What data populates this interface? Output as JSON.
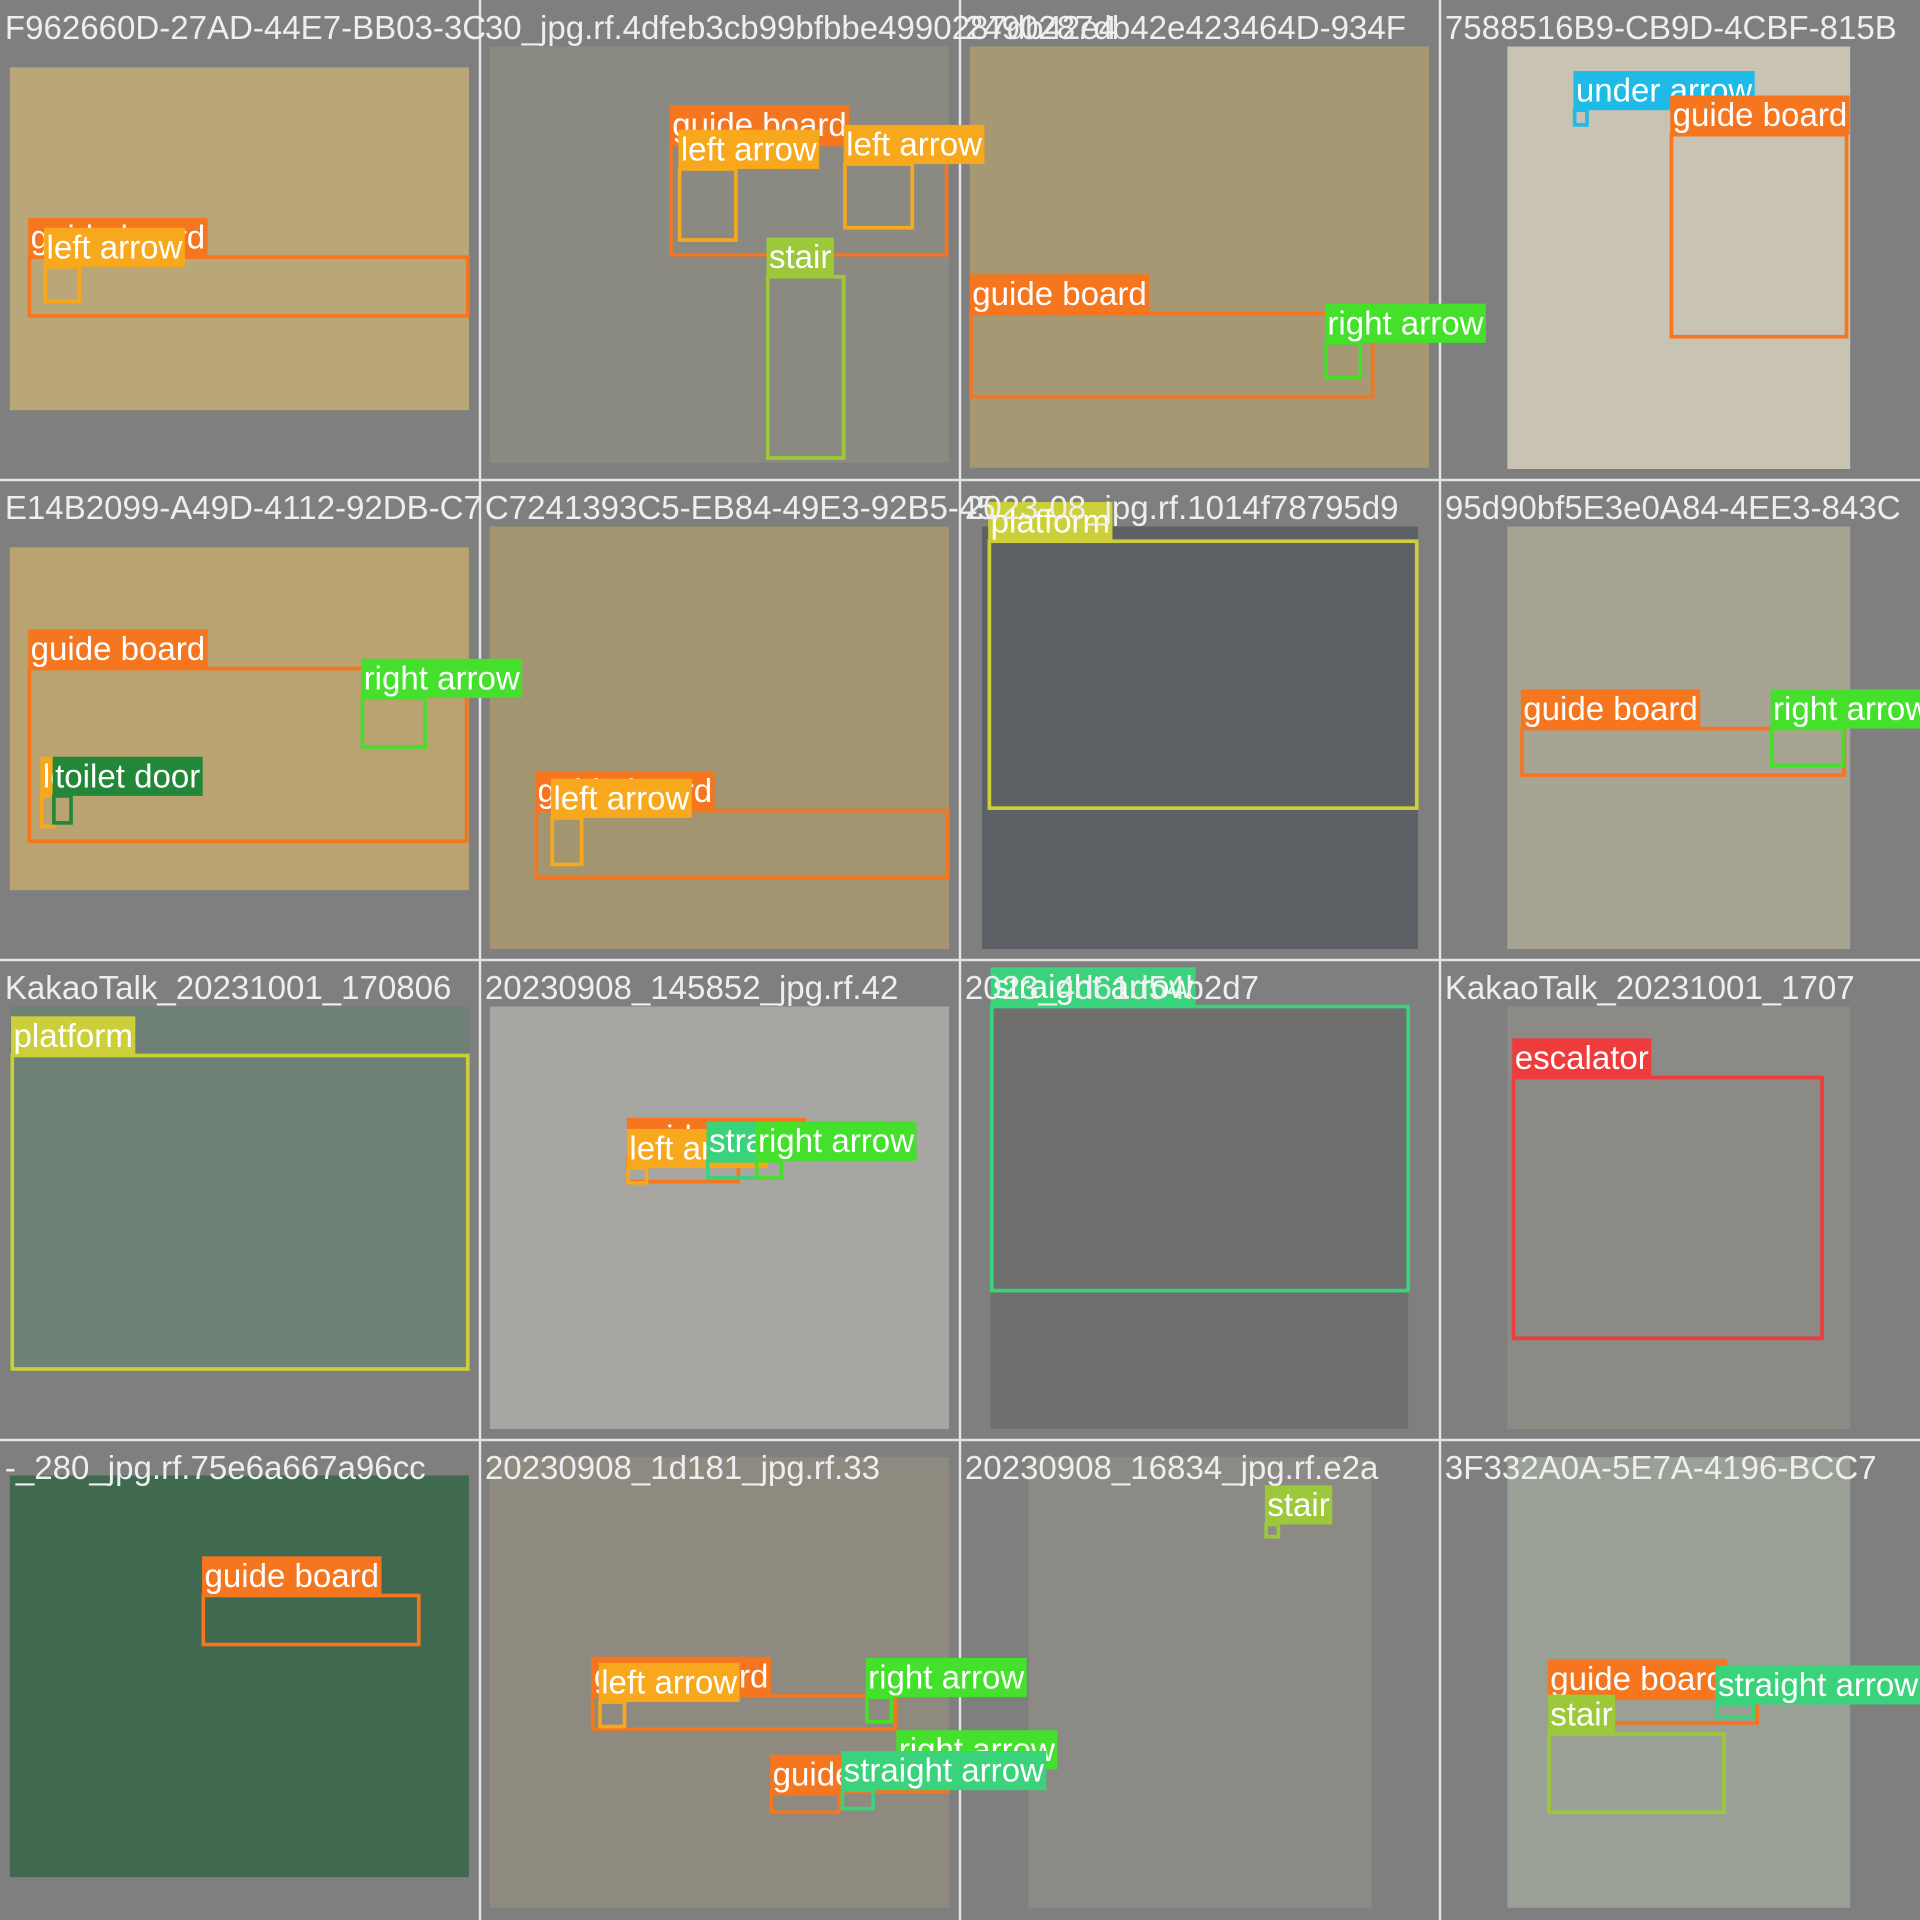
{
  "tiles": [
    {
      "filename": "F962660D-27AD-44E7-BB03-3C",
      "detections": [
        {
          "label": "guide board",
          "color": "#f5761f"
        },
        {
          "label": "left arrow",
          "color": "#f7a81c"
        }
      ]
    },
    {
      "filename": "30_jpg.rf.4dfeb3cb99bfbbe4990287db42e4",
      "detections": [
        {
          "label": "guide board",
          "color": "#f5761f"
        },
        {
          "label": "left arrow",
          "color": "#f7a81c"
        },
        {
          "label": "left arrow",
          "color": "#f7a81c"
        },
        {
          "label": "stair",
          "color": "#9cc83a"
        }
      ]
    },
    {
      "filename": "2490287db42e423464D-934F",
      "detections": [
        {
          "label": "guide board",
          "color": "#f5761f"
        },
        {
          "label": "right arrow",
          "color": "#45e02c"
        }
      ]
    },
    {
      "filename": "7588516B9-CB9D-4CBF-815B",
      "detections": [
        {
          "label": "under arrow",
          "color": "#1fbbe8"
        },
        {
          "label": "guide board",
          "color": "#f5761f"
        }
      ]
    },
    {
      "filename": "E14B2099-A49D-4112-92DB-C7",
      "detections": [
        {
          "label": "guide board",
          "color": "#f5761f"
        },
        {
          "label": "right arrow",
          "color": "#45e02c"
        },
        {
          "label": "left arrow",
          "color": "#f7a81c"
        },
        {
          "label": "toilet door",
          "color": "#23873a"
        }
      ]
    },
    {
      "filename": "C7241393C5-EB84-49E3-92B5-45",
      "detections": [
        {
          "label": "guide board",
          "color": "#f5761f"
        },
        {
          "label": "left arrow",
          "color": "#f7a81c"
        }
      ]
    },
    {
      "filename": "2023-08_jpg.rf.1014f78795d9",
      "detections": [
        {
          "label": "platform",
          "color": "#cccf3a"
        }
      ]
    },
    {
      "filename": "95d90bf5E3e0A84-4EE3-843C",
      "detections": [
        {
          "label": "guide board",
          "color": "#f5761f"
        },
        {
          "label": "right arrow",
          "color": "#45e02c"
        }
      ]
    },
    {
      "filename": "KakaoTalk_20231001_170806",
      "detections": [
        {
          "label": "platform",
          "color": "#cccf3a"
        }
      ]
    },
    {
      "filename": "20230908_145852_jpg.rf.42",
      "detections": [
        {
          "label": "guide board",
          "color": "#f5761f"
        },
        {
          "label": "left arrow",
          "color": "#f7a81c"
        },
        {
          "label": "straight arrow",
          "color": "#3ad27a"
        },
        {
          "label": "right arrow",
          "color": "#45e02c"
        }
      ]
    },
    {
      "filename": "2023_4d61d54b2d7",
      "detections": [
        {
          "label": "straight arrow",
          "color": "#3ad27a"
        }
      ]
    },
    {
      "filename": "KakaoTalk_20231001_1707",
      "detections": [
        {
          "label": "escalator",
          "color": "#ee3b3b"
        }
      ]
    },
    {
      "filename": "-_280_jpg.rf.75e6a667a96cc",
      "detections": [
        {
          "label": "guide board",
          "color": "#f5761f"
        }
      ]
    },
    {
      "filename": "20230908_1d181_jpg.rf.33",
      "detections": [
        {
          "label": "guide board",
          "color": "#f5761f"
        },
        {
          "label": "left arrow",
          "color": "#f7a81c"
        },
        {
          "label": "right arrow",
          "color": "#45e02c"
        },
        {
          "label": "right arrow",
          "color": "#45e02c"
        },
        {
          "label": "guide board",
          "color": "#f5761f"
        },
        {
          "label": "straight arrow",
          "color": "#3ad27a"
        }
      ]
    },
    {
      "filename": "20230908_16834_jpg.rf.e2a",
      "detections": [
        {
          "label": "stair",
          "color": "#9cc83a"
        }
      ]
    },
    {
      "filename": "3F332A0A-5E7A-4196-BCC7",
      "detections": [
        {
          "label": "guide board",
          "color": "#f5761f"
        },
        {
          "label": "straight arrow",
          "color": "#3ad27a"
        },
        {
          "label": "stair",
          "color": "#9cc83a"
        }
      ]
    }
  ]
}
